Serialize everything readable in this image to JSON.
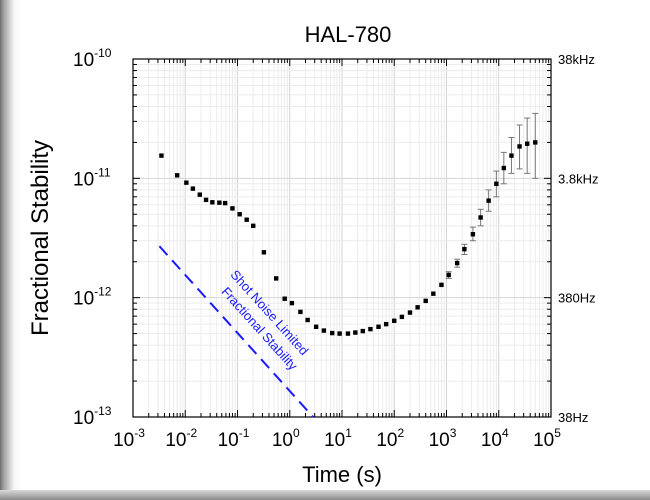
{
  "chart_data": {
    "type": "scatter",
    "title": "HAL-780",
    "xlabel": "Time (s)",
    "ylabel": "Fractional Stability",
    "x_scale": "log",
    "y_scale": "log",
    "xlim": [
      0.001,
      100000
    ],
    "ylim": [
      1e-13,
      1e-10
    ],
    "grid": true,
    "x_ticks": [
      {
        "base": "10",
        "exp": "-3",
        "value": 0.001
      },
      {
        "base": "10",
        "exp": "-2",
        "value": 0.01
      },
      {
        "base": "10",
        "exp": "-1",
        "value": 0.1
      },
      {
        "base": "10",
        "exp": "0",
        "value": 1
      },
      {
        "base": "10",
        "exp": "1",
        "value": 10
      },
      {
        "base": "10",
        "exp": "2",
        "value": 100
      },
      {
        "base": "10",
        "exp": "3",
        "value": 1000
      },
      {
        "base": "10",
        "exp": "4",
        "value": 10000
      },
      {
        "base": "10",
        "exp": "5",
        "value": 100000
      }
    ],
    "y_ticks": [
      {
        "base": "10",
        "exp": "-10",
        "value": 1e-10
      },
      {
        "base": "10",
        "exp": "-11",
        "value": 1e-11
      },
      {
        "base": "10",
        "exp": "-12",
        "value": 1e-12
      },
      {
        "base": "10",
        "exp": "-13",
        "value": 1e-13
      }
    ],
    "right_axis_ticks": [
      {
        "label": "38kHz",
        "value": 1e-10
      },
      {
        "label": "3.8kHz",
        "value": 1e-11
      },
      {
        "label": "380Hz",
        "value": 1e-12
      },
      {
        "label": "38Hz",
        "value": 1e-13
      }
    ],
    "series": [
      {
        "marker_color": "#000000",
        "points": [
          {
            "x": 0.0035,
            "y": 1.55e-11
          },
          {
            "x": 0.007,
            "y": 1.06e-11
          },
          {
            "x": 0.0105,
            "y": 9.2e-12
          },
          {
            "x": 0.014,
            "y": 8.2e-12
          },
          {
            "x": 0.019,
            "y": 7.3e-12
          },
          {
            "x": 0.025,
            "y": 6.6e-12
          },
          {
            "x": 0.033,
            "y": 6.3e-12
          },
          {
            "x": 0.045,
            "y": 6.25e-12
          },
          {
            "x": 0.058,
            "y": 6.2e-12
          },
          {
            "x": 0.08,
            "y": 5.6e-12
          },
          {
            "x": 0.11,
            "y": 5e-12
          },
          {
            "x": 0.15,
            "y": 4.5e-12
          },
          {
            "x": 0.2,
            "y": 4e-12
          },
          {
            "x": 0.32,
            "y": 2.4e-12
          },
          {
            "x": 0.55,
            "y": 1.45e-12
          },
          {
            "x": 0.8,
            "y": 9.8e-13
          },
          {
            "x": 1.1,
            "y": 9e-13
          },
          {
            "x": 1.6,
            "y": 7.6e-13
          },
          {
            "x": 2.2,
            "y": 6.5e-13
          },
          {
            "x": 3.2,
            "y": 5.7e-13
          },
          {
            "x": 4.5,
            "y": 5.3e-13
          },
          {
            "x": 6.5,
            "y": 5.05e-13
          },
          {
            "x": 9.0,
            "y": 5e-13
          },
          {
            "x": 13,
            "y": 5e-13
          },
          {
            "x": 18,
            "y": 5.1e-13
          },
          {
            "x": 25,
            "y": 5.25e-13
          },
          {
            "x": 35,
            "y": 5.45e-13
          },
          {
            "x": 50,
            "y": 5.7e-13
          },
          {
            "x": 70,
            "y": 6e-13
          },
          {
            "x": 100,
            "y": 6.4e-13
          },
          {
            "x": 140,
            "y": 6.9e-13
          },
          {
            "x": 200,
            "y": 7.5e-13
          },
          {
            "x": 280,
            "y": 8.3e-13
          },
          {
            "x": 400,
            "y": 9.4e-13
          },
          {
            "x": 560,
            "y": 1.08e-12
          },
          {
            "x": 800,
            "y": 1.28e-12
          },
          {
            "x": 1100,
            "y": 1.55e-12,
            "err": [
              1.45e-12,
              1.65e-12
            ]
          },
          {
            "x": 1600,
            "y": 1.95e-12,
            "err": [
              1.8e-12,
              2.1e-12
            ]
          },
          {
            "x": 2200,
            "y": 2.55e-12,
            "err": [
              2.3e-12,
              2.8e-12
            ]
          },
          {
            "x": 3200,
            "y": 3.4e-12,
            "err": [
              3e-12,
              3.9e-12
            ]
          },
          {
            "x": 4500,
            "y": 4.7e-12,
            "err": [
              4e-12,
              5.5e-12
            ]
          },
          {
            "x": 6400,
            "y": 6.5e-12,
            "err": [
              5.3e-12,
              8e-12
            ]
          },
          {
            "x": 9000,
            "y": 9e-12,
            "err": [
              7e-12,
              1.15e-11
            ]
          },
          {
            "x": 12500,
            "y": 1.22e-11,
            "err": [
              9e-12,
              1.65e-11
            ]
          },
          {
            "x": 17500,
            "y": 1.55e-11,
            "err": [
              1.1e-11,
              2.2e-11
            ]
          },
          {
            "x": 25000,
            "y": 1.85e-11,
            "err": [
              1.2e-11,
              2.8e-11
            ]
          },
          {
            "x": 35000,
            "y": 1.95e-11,
            "err": [
              1.1e-11,
              3.2e-11
            ]
          },
          {
            "x": 50000,
            "y": 2e-11,
            "err": [
              1e-11,
              3.5e-11
            ]
          }
        ]
      }
    ],
    "reference_line": {
      "style": "dashed",
      "color": "#1a1aff",
      "x": [
        0.0032,
        2.8
      ],
      "y": [
        2.7e-12,
        1e-13
      ],
      "label_line1": "Shot Noise Limited",
      "label_line2": "Fractional Stability"
    }
  }
}
